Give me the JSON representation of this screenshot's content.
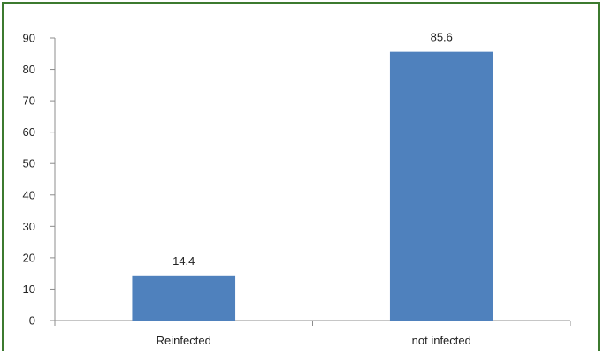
{
  "chart_data": {
    "type": "bar",
    "categories": [
      "Reinfected",
      "not infected"
    ],
    "values": [
      14.4,
      85.6
    ],
    "data_labels": [
      "14.4",
      "85.6"
    ],
    "title": "",
    "xlabel": "",
    "ylabel": "",
    "ylim": [
      0,
      90
    ],
    "yticks": [
      0,
      10,
      20,
      30,
      40,
      50,
      60,
      70,
      80,
      90
    ],
    "ytick_labels": [
      "0",
      "10",
      "20",
      "30",
      "40",
      "50",
      "60",
      "70",
      "80",
      "90"
    ],
    "grid": false,
    "legend": "none",
    "bar_color": "#4f81bd",
    "frame_color": "#3c7a2f",
    "axis_color": "#8c8c8c"
  }
}
